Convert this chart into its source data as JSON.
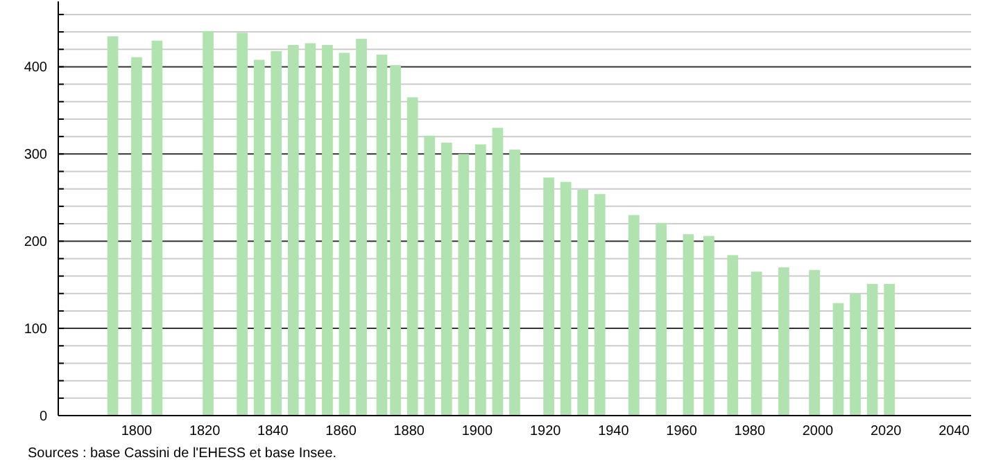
{
  "chart_data": {
    "type": "bar",
    "x": [
      1793,
      1800,
      1806,
      1821,
      1831,
      1836,
      1841,
      1846,
      1851,
      1856,
      1861,
      1866,
      1872,
      1876,
      1881,
      1886,
      1891,
      1896,
      1901,
      1906,
      1911,
      1921,
      1926,
      1931,
      1936,
      1946,
      1954,
      1962,
      1968,
      1975,
      1982,
      1990,
      1999,
      2006,
      2011,
      2016,
      2021
    ],
    "values": [
      435,
      411,
      430,
      441,
      439,
      408,
      418,
      425,
      427,
      425,
      416,
      432,
      414,
      402,
      365,
      321,
      313,
      300,
      311,
      330,
      305,
      273,
      268,
      259,
      254,
      230,
      221,
      208,
      206,
      184,
      165,
      170,
      167,
      129,
      140,
      151,
      151
    ],
    "color": "#b0e3b0",
    "xlim": [
      1777,
      2045
    ],
    "xticks": [
      1800,
      1820,
      1840,
      1860,
      1880,
      1900,
      1920,
      1940,
      1960,
      1980,
      2000,
      2020,
      2040
    ],
    "ylim": [
      0,
      475
    ],
    "yticks": [
      0,
      {
        "value": 20,
        "label": null
      },
      {
        "value": 40,
        "label": null
      },
      {
        "value": 60,
        "label": null
      },
      {
        "value": 80,
        "label": null
      },
      100,
      {
        "value": 120,
        "label": null
      },
      {
        "value": 140,
        "label": null
      },
      {
        "value": 160,
        "label": null
      },
      {
        "value": 180,
        "label": null
      },
      200,
      {
        "value": 220,
        "label": null
      },
      {
        "value": 240,
        "label": null
      },
      {
        "value": 260,
        "label": null
      },
      {
        "value": 280,
        "label": null
      },
      300,
      {
        "value": 320,
        "label": null
      },
      {
        "value": 340,
        "label": null
      },
      {
        "value": 360,
        "label": null
      },
      {
        "value": 380,
        "label": null
      },
      400,
      {
        "value": 420,
        "label": null
      },
      {
        "value": 440,
        "label": null
      },
      {
        "value": 460,
        "label": null
      }
    ],
    "grid": true,
    "annotations": [
      "Sources : base Cassini de l'EHESS et base Insee."
    ]
  }
}
